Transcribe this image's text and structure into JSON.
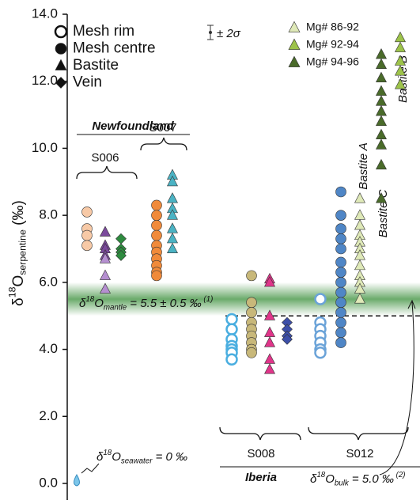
{
  "chart_data": {
    "type": "scatter",
    "y_label": {
      "base": "δ",
      "sup": "18",
      "main": "O",
      "sub": "serpentine",
      "rest": " (‰)"
    },
    "ylim": [
      0,
      14
    ],
    "yticks": [
      {
        "value": 0,
        "label": "0.0"
      },
      {
        "value": 2,
        "label": "2.0"
      },
      {
        "value": 4,
        "label": "4.0"
      },
      {
        "value": 6,
        "label": "6.0"
      },
      {
        "value": 8,
        "label": "8.0"
      },
      {
        "value": 10,
        "label": "10.0"
      },
      {
        "value": 12,
        "label": "12.0"
      },
      {
        "value": 14,
        "label": "14.0"
      }
    ],
    "legend": [
      {
        "name": "Mesh rim",
        "marker": "circle-open"
      },
      {
        "name": "Mesh centre",
        "marker": "circle"
      },
      {
        "name": "Bastite",
        "marker": "triangle"
      },
      {
        "name": "Vein",
        "marker": "diamond"
      }
    ],
    "mg_legend": [
      {
        "name": "Mg# 86-92",
        "color": "#dfe9b8"
      },
      {
        "name": "Mg# 92-94",
        "color": "#9dc34a"
      },
      {
        "name": "Mg# 94-96",
        "color": "#4a6b2a"
      }
    ],
    "error_label": "± 2σ",
    "series": [
      {
        "marker": "circle",
        "color": "#f7c9a6",
        "values": [
          8.1,
          7.6,
          7.4,
          7.1
        ]
      },
      {
        "marker": "triangle",
        "color": "#7b4a9c",
        "values": [
          7.5,
          7.1,
          7.0,
          6.8
        ]
      },
      {
        "marker": "triangle",
        "color": "#b58fd0",
        "values": [
          6.7,
          6.2,
          5.8
        ]
      },
      {
        "marker": "diamond",
        "color": "#2e8b3f",
        "values": [
          7.3,
          7.0,
          6.9,
          6.8
        ]
      },
      {
        "marker": "circle",
        "color": "#f08a3a",
        "values": [
          8.3,
          8.0,
          7.7,
          7.4,
          7.1,
          6.9,
          6.7,
          6.5,
          6.3,
          6.2
        ]
      },
      {
        "marker": "triangle",
        "color": "#4bb3c4",
        "values": [
          9.2,
          9.0,
          8.5,
          8.2,
          8.0,
          7.6,
          7.3,
          7.0
        ]
      },
      {
        "marker": "circle-open",
        "color": "#4aaee0",
        "values": [
          4.9,
          4.6,
          4.3,
          4.1,
          4.0,
          3.9,
          3.7
        ]
      },
      {
        "marker": "circle",
        "color": "#c8b87a",
        "values": [
          6.2,
          5.4,
          5.1,
          4.8,
          4.6,
          4.4,
          4.2,
          4.0,
          3.9
        ]
      },
      {
        "marker": "triangle",
        "color": "#e0358a",
        "values": [
          6.1,
          6.0,
          5.0,
          4.5,
          4.2,
          3.7,
          3.4
        ]
      },
      {
        "marker": "diamond",
        "color": "#3d4fa8",
        "values": [
          4.8,
          4.6,
          4.4,
          4.3
        ]
      },
      {
        "marker": "circle-open",
        "color": "#6ba3d8",
        "values": [
          5.5,
          4.8,
          4.6,
          4.4,
          4.2,
          4.0,
          3.9
        ]
      },
      {
        "marker": "circle",
        "color": "#4f86c6",
        "values": [
          8.7,
          8.0,
          7.6,
          7.3,
          7.0,
          6.6,
          6.3,
          6.0,
          5.7,
          5.4,
          5.1,
          4.8,
          4.5,
          4.2
        ]
      },
      {
        "marker": "triangle",
        "color": "#dfe9b8",
        "values": [
          8.5,
          8.0,
          7.7,
          7.4,
          7.2,
          7.0,
          6.8,
          6.5,
          6.2,
          6.0,
          5.8,
          5.5
        ]
      },
      {
        "marker": "triangle",
        "color": "#4a6b2a",
        "values": [
          12.8,
          12.5,
          12.1,
          11.7,
          11.4,
          11.1,
          10.8,
          10.4,
          10.1,
          9.5,
          8.5
        ]
      },
      {
        "marker": "triangle",
        "color": "#9dc34a",
        "values": [
          13.3,
          13.0,
          12.6,
          12.3,
          11.9
        ]
      }
    ],
    "groups": {
      "newfoundland": "Newfoundland",
      "s006": "S006",
      "s007": "S007",
      "s008": "S008",
      "s012": "S012",
      "iberia": "Iberia"
    },
    "bastite": {
      "a": "Bastite A",
      "b": "Bastite B",
      "c": "Bastite C"
    },
    "mantle": {
      "base": "δ",
      "sup": "18",
      "main": "O",
      "sub": "mantle",
      "rest": " = 5.5 ± 0.5 ‰",
      "note": " (1)",
      "value": 5.5,
      "error": 0.5
    },
    "bulk": {
      "base": "δ",
      "sup": "18",
      "main": "O",
      "sub": "bulk",
      "rest": " = 5.0 ‰",
      "note": " (2)",
      "value": 5.0
    },
    "seawater": {
      "base": "δ",
      "sup": "18",
      "main": "O",
      "sub": "seawater",
      "rest": " = 0 ‰",
      "value": 0
    }
  }
}
